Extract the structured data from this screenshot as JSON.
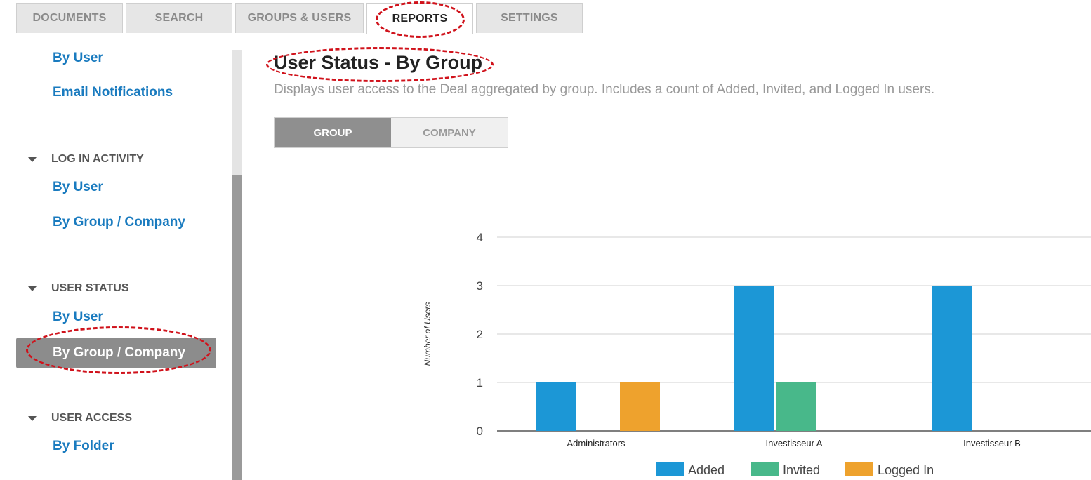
{
  "tabs": [
    {
      "label": "DOCUMENTS"
    },
    {
      "label": "SEARCH"
    },
    {
      "label": "GROUPS & USERS"
    },
    {
      "label": "REPORTS"
    },
    {
      "label": "SETTINGS"
    }
  ],
  "sidebar": {
    "top_links": [
      "By User",
      "Email Notifications"
    ],
    "sections": [
      {
        "title": "LOG IN ACTIVITY",
        "items": [
          "By User",
          "By Group / Company"
        ]
      },
      {
        "title": "USER STATUS",
        "items": [
          "By User",
          "By Group / Company"
        ]
      },
      {
        "title": "USER ACCESS",
        "items": [
          "By Folder"
        ]
      }
    ]
  },
  "main": {
    "title": "User Status - By Group",
    "description": "Displays user access to the Deal aggregated by group. Includes a count of Added, Invited, and Logged In users.",
    "toggle": {
      "group": "GROUP",
      "company": "COMPANY"
    }
  },
  "chart_data": {
    "type": "bar",
    "categories": [
      "Administrators",
      "Investisseur A",
      "Investisseur B"
    ],
    "series": [
      {
        "name": "Added",
        "values": [
          1,
          3,
          3
        ],
        "color": "#1c97d6"
      },
      {
        "name": "Invited",
        "values": [
          0,
          1,
          0
        ],
        "color": "#48b88a"
      },
      {
        "name": "Logged In",
        "values": [
          1,
          0,
          0
        ],
        "color": "#eea22d"
      }
    ],
    "ylabel": "Number of Users",
    "ylim": [
      0,
      4
    ],
    "yticks": [
      0,
      1,
      2,
      3,
      4
    ],
    "grid": true,
    "legend": "bottom"
  }
}
